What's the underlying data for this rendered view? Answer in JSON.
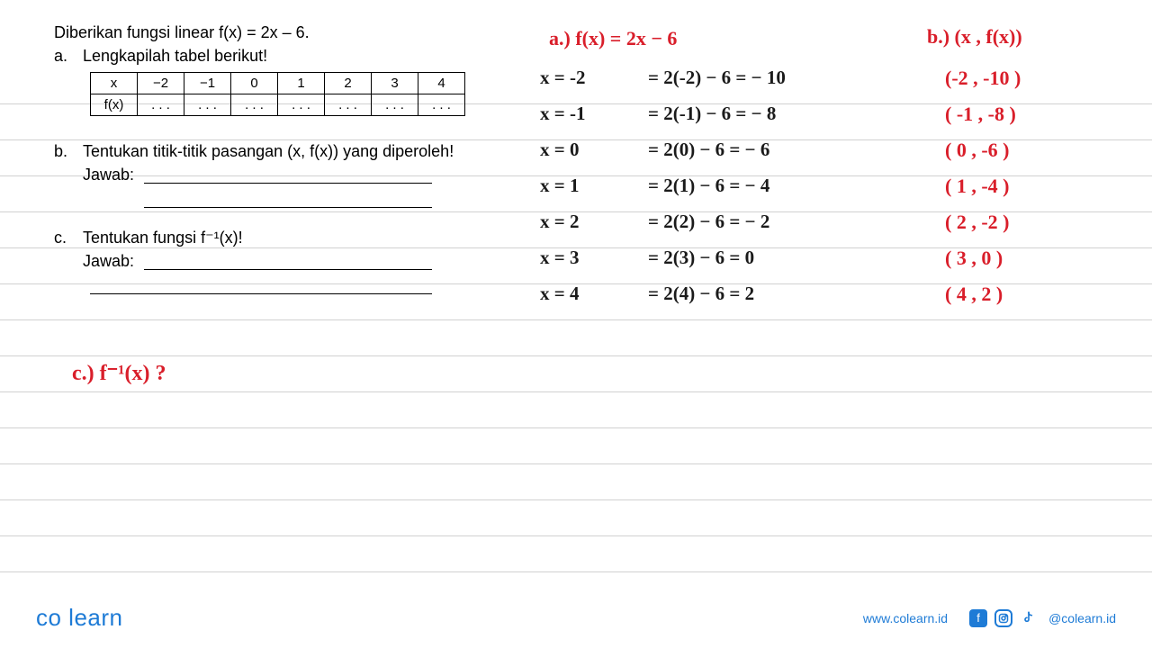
{
  "colors": {
    "printed": "#000000",
    "hand_black": "#1a1a1a",
    "hand_red": "#d91e2a",
    "rule_line": "#d0d0d0",
    "logo_blue": "#1e7bd6",
    "website": "#1e7bd6",
    "social_bg": "#1e7bd6"
  },
  "problem": {
    "stem": "Diberikan fungsi linear f(x) = 2x – 6.",
    "a_label": "a.",
    "a_text": "Lengkapilah tabel berikut!",
    "table": {
      "headers": [
        "x",
        "−2",
        "−1",
        "0",
        "1",
        "2",
        "3",
        "4"
      ],
      "row2_label": "f(x)",
      "row2_cells": [
        ". . .",
        ". . .",
        ". . .",
        ". . .",
        ". . .",
        ". . .",
        ". . ."
      ]
    },
    "b_label": "b.",
    "b_text": "Tentukan titik-titik pasangan (x, f(x)) yang diperoleh!",
    "jawab": "Jawab:",
    "c_label": "c.",
    "c_text": "Tentukan fungsi f⁻¹(x)!"
  },
  "work": {
    "a_header": "a.)  f(x)  =  2x  −  6",
    "b_header": "b.)   (x ,  f(x))",
    "rows": [
      {
        "x": "x = -2",
        "calc": "= 2(-2) − 6  =  − 10",
        "pair": "(-2 , -10 )"
      },
      {
        "x": "x = -1",
        "calc": "= 2(-1) − 6  =   − 8",
        "pair": "( -1 , -8 )"
      },
      {
        "x": "x = 0",
        "calc": "= 2(0) − 6   =  − 6",
        "pair": "( 0 , -6 )"
      },
      {
        "x": "x = 1",
        "calc": "= 2(1) − 6   =  − 4",
        "pair": "( 1 ,  -4 )"
      },
      {
        "x": "x = 2",
        "calc": "= 2(2) − 6   =  − 2",
        "pair": "( 2 ,  -2 )"
      },
      {
        "x": "x = 3",
        "calc": "= 2(3) − 6   =   0",
        "pair": "( 3 ,  0 )"
      },
      {
        "x": "x = 4",
        "calc": "= 2(4) − 6   =   2",
        "pair": "( 4 , 2 )"
      }
    ],
    "c_header": "c.)  f⁻¹(x)  ?"
  },
  "footer": {
    "logo": "co learn",
    "website": "www.colearn.id",
    "handle": "@colearn.id"
  },
  "ruled_line_positions": [
    115,
    155,
    195,
    235,
    275,
    315,
    355,
    395,
    435,
    475,
    515,
    555,
    595,
    635
  ]
}
